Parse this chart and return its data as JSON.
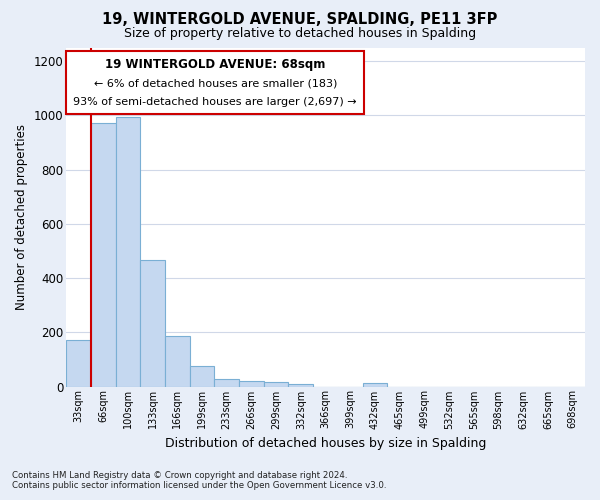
{
  "title_line1": "19, WINTERGOLD AVENUE, SPALDING, PE11 3FP",
  "title_line2": "Size of property relative to detached houses in Spalding",
  "xlabel": "Distribution of detached houses by size in Spalding",
  "ylabel": "Number of detached properties",
  "footnote": "Contains HM Land Registry data © Crown copyright and database right 2024.\nContains public sector information licensed under the Open Government Licence v3.0.",
  "categories": [
    "33sqm",
    "66sqm",
    "100sqm",
    "133sqm",
    "166sqm",
    "199sqm",
    "233sqm",
    "266sqm",
    "299sqm",
    "332sqm",
    "366sqm",
    "399sqm",
    "432sqm",
    "465sqm",
    "499sqm",
    "532sqm",
    "565sqm",
    "598sqm",
    "632sqm",
    "665sqm",
    "698sqm"
  ],
  "values": [
    170,
    970,
    995,
    465,
    185,
    75,
    28,
    22,
    15,
    10,
    0,
    0,
    12,
    0,
    0,
    0,
    0,
    0,
    0,
    0,
    0
  ],
  "bar_color": "#c5d8f0",
  "bar_edge_color": "#7aafd4",
  "ylim": [
    0,
    1250
  ],
  "yticks": [
    0,
    200,
    400,
    600,
    800,
    1000,
    1200
  ],
  "annotation_box_text_line1": "19 WINTERGOLD AVENUE: 68sqm",
  "annotation_box_text_line2": "← 6% of detached houses are smaller (183)",
  "annotation_box_text_line3": "93% of semi-detached houses are larger (2,697) →",
  "vline_color": "#cc0000",
  "vline_x": 0.5,
  "fig_background_color": "#e8eef8",
  "plot_background_color": "#ffffff",
  "grid_color": "#d0d8e8"
}
